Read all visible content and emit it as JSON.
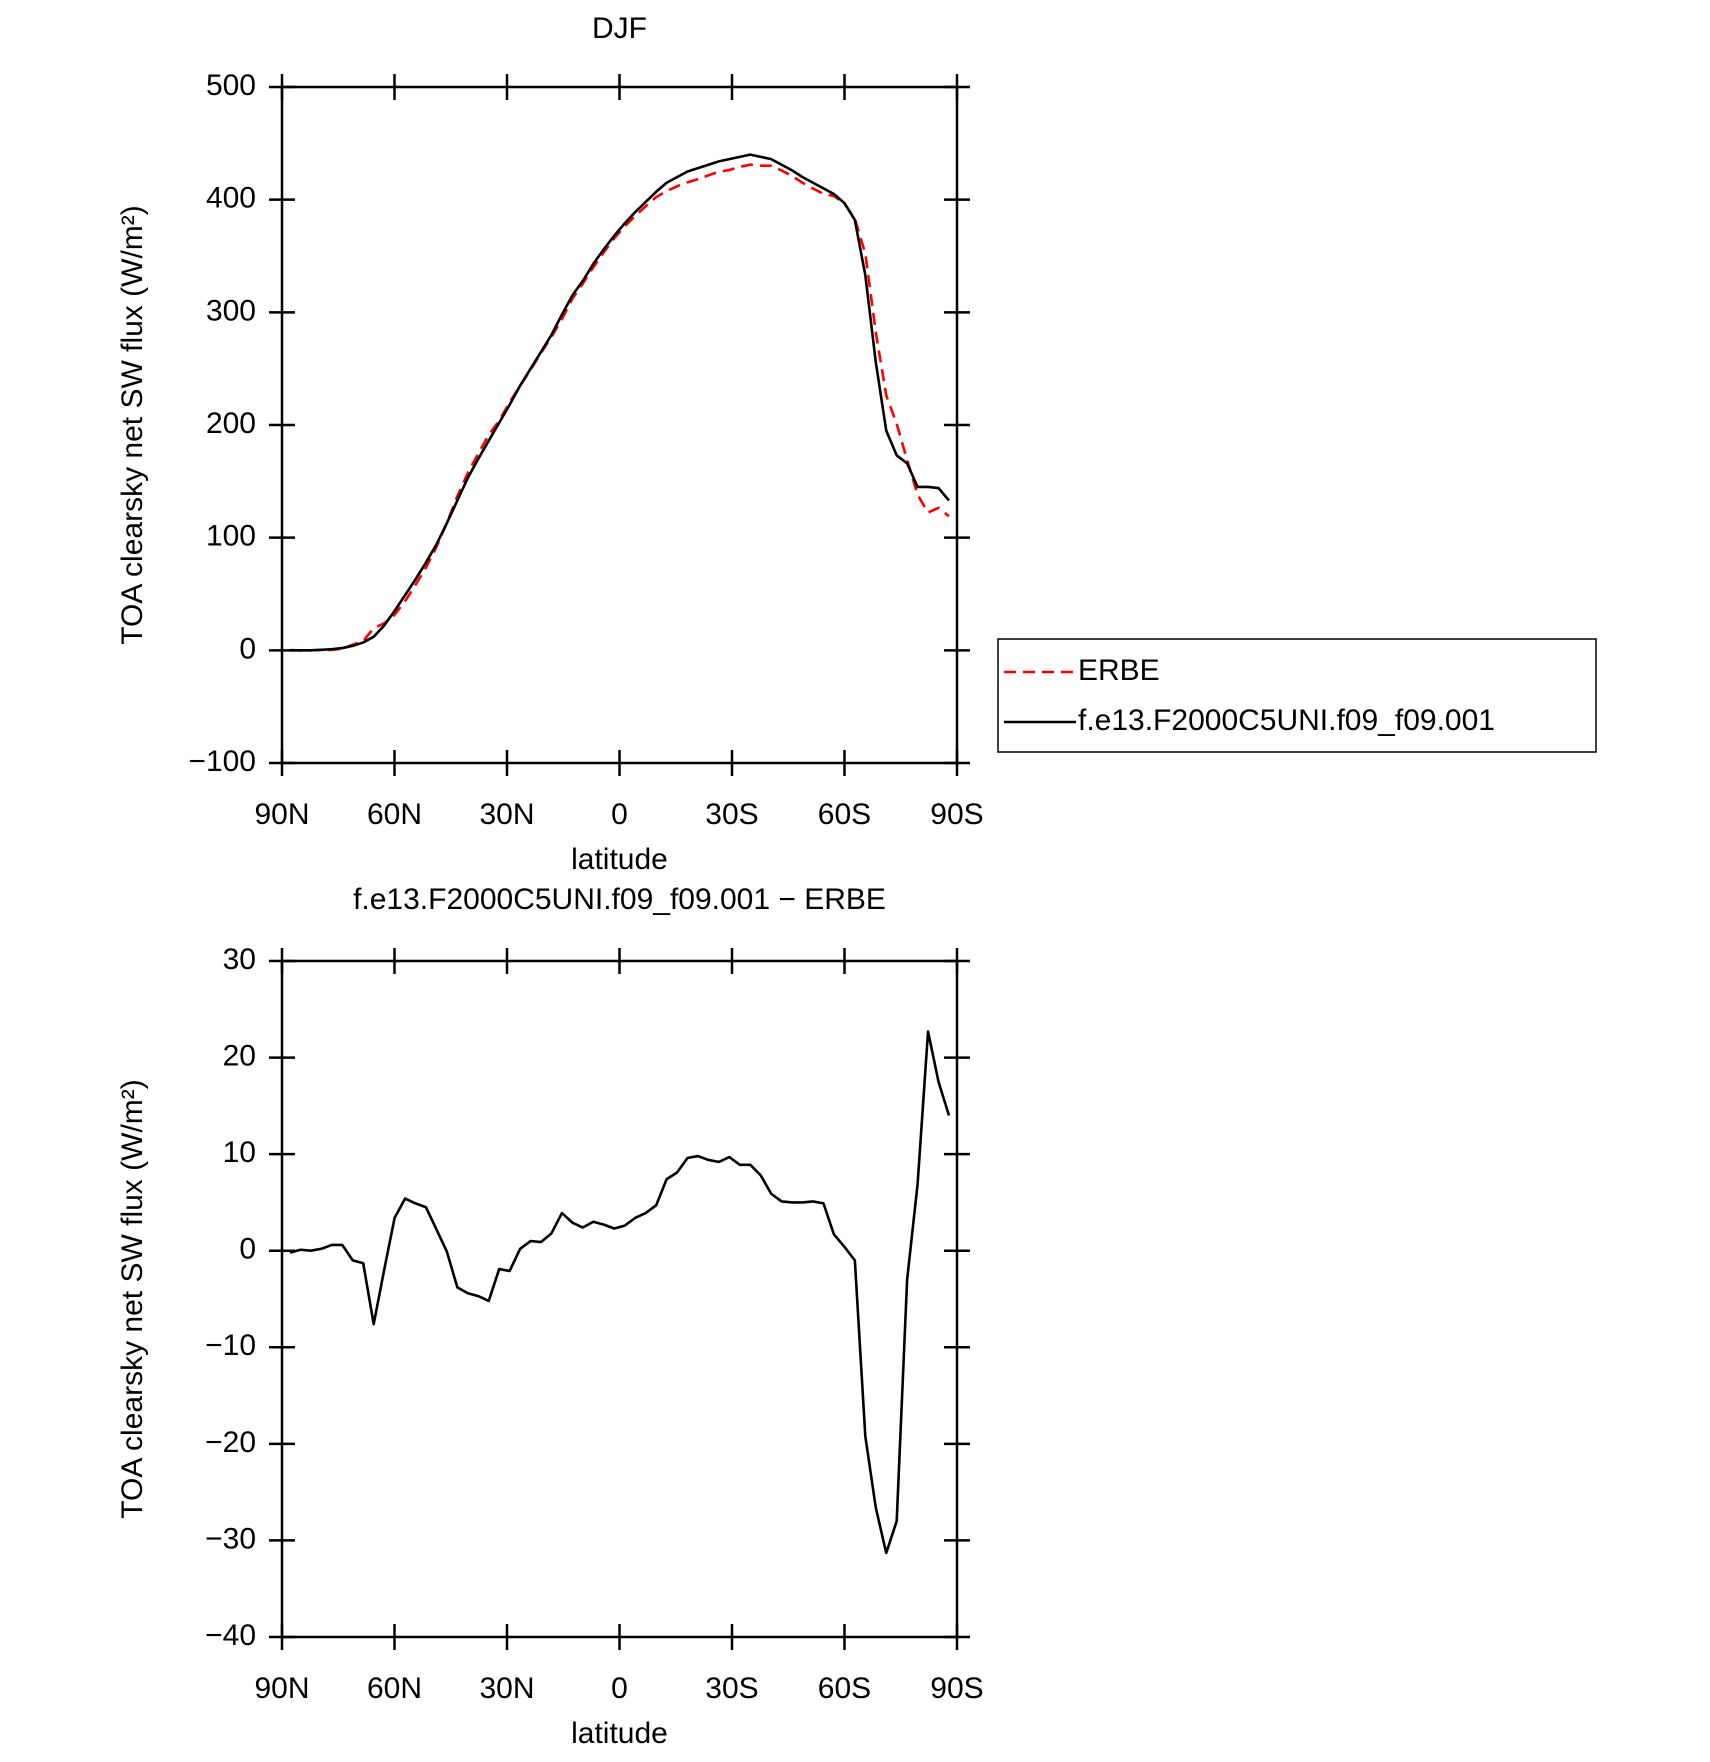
{
  "chart_data": [
    {
      "type": "line",
      "title": "DJF",
      "xlabel": "latitude",
      "ylabel": "TOA clearsky net SW flux (W/m²)",
      "x": [
        87.86,
        85.07,
        82.28,
        79.49,
        76.7,
        73.92,
        71.13,
        68.34,
        65.55,
        62.76,
        59.97,
        57.18,
        54.39,
        51.6,
        48.81,
        46.03,
        43.24,
        40.45,
        37.66,
        34.87,
        32.08,
        29.29,
        26.5,
        23.71,
        20.92,
        18.14,
        15.35,
        12.56,
        9.77,
        6.98,
        4.19,
        1.4,
        -1.4,
        -4.19,
        -6.98,
        -9.77,
        -12.56,
        -15.35,
        -18.14,
        -20.92,
        -23.71,
        -26.5,
        -29.29,
        -32.08,
        -34.87,
        -37.66,
        -40.45,
        -43.24,
        -46.03,
        -48.81,
        -51.6,
        -54.39,
        -57.18,
        -59.97,
        -62.76,
        -65.55,
        -68.34,
        -71.13,
        -73.92,
        -76.7,
        -79.49,
        -82.28,
        -85.07,
        -87.86
      ],
      "series": [
        {
          "name": "ERBE",
          "color": "#ff0000",
          "dash": true,
          "values": [
            0.2,
            -0.1,
            0,
            0.3,
            0.4,
            1.4,
            5,
            8.3,
            19.6,
            24,
            31.6,
            43.6,
            58.1,
            73.5,
            91.8,
            113.1,
            136.8,
            157.4,
            174.7,
            191.2,
            203.9,
            220.1,
            234.8,
            249,
            264.1,
            278.2,
            294.1,
            312.1,
            325.6,
            340,
            353.3,
            365.7,
            376.4,
            385.6,
            394.1,
            402.3,
            407.6,
            411.9,
            415.4,
            418.2,
            421.6,
            424.8,
            426.3,
            429.1,
            431.1,
            430.2,
            430.1,
            425.9,
            421,
            415,
            409.9,
            405.1,
            403.3,
            396.6,
            383,
            352.2,
            282.6,
            226.3,
            201,
            169,
            138.1,
            122.3,
            126.5,
            119
          ]
        },
        {
          "name": "f.e13.F2000C5UNI.f09_f09.001",
          "color": "#000000",
          "dash": false,
          "values": [
            0,
            0,
            0,
            0.5,
            1,
            2,
            4,
            7,
            12,
            22,
            35,
            49,
            63,
            78,
            94,
            113,
            133,
            153,
            170,
            186,
            202,
            218,
            235,
            250,
            265,
            280,
            298,
            315,
            328,
            343,
            356,
            368,
            379,
            389,
            398,
            407,
            415,
            420,
            425,
            428,
            431,
            434,
            436,
            438,
            440,
            438,
            436,
            431,
            426,
            420,
            415,
            410,
            405,
            397,
            382,
            333,
            256,
            195,
            173,
            166,
            145,
            145,
            144,
            133
          ]
        }
      ],
      "xlim": [
        90,
        -90
      ],
      "xticks": [
        {
          "value": 90,
          "label": "90N"
        },
        {
          "value": 60,
          "label": "60N"
        },
        {
          "value": 30,
          "label": "30N"
        },
        0,
        {
          "value": -30,
          "label": "30S"
        },
        {
          "value": -60,
          "label": "60S"
        },
        {
          "value": -90,
          "label": "90S"
        }
      ],
      "ylim": [
        -100,
        500
      ],
      "yticks": [
        {
          "value": -100,
          "label": "−100"
        },
        0,
        100,
        200,
        300,
        400,
        500
      ],
      "legend": "right"
    },
    {
      "type": "line",
      "title": "f.e13.F2000C5UNI.f09_f09.001 − ERBE",
      "xlabel": "latitude",
      "ylabel": "TOA clearsky net SW flux (W/m²)",
      "x": [
        87.86,
        85.07,
        82.28,
        79.49,
        76.7,
        73.92,
        71.13,
        68.34,
        65.55,
        62.76,
        59.97,
        57.18,
        54.39,
        51.6,
        48.81,
        46.03,
        43.24,
        40.45,
        37.66,
        34.87,
        32.08,
        29.29,
        26.5,
        23.71,
        20.92,
        18.14,
        15.35,
        12.56,
        9.77,
        6.98,
        4.19,
        1.4,
        -1.4,
        -4.19,
        -6.98,
        -9.77,
        -12.56,
        -15.35,
        -18.14,
        -20.92,
        -23.71,
        -26.5,
        -29.29,
        -32.08,
        -34.87,
        -37.66,
        -40.45,
        -43.24,
        -46.03,
        -48.81,
        -51.6,
        -54.39,
        -57.18,
        -59.97,
        -62.76,
        -65.55,
        -68.34,
        -71.13,
        -73.92,
        -76.7,
        -79.49,
        -82.28,
        -85.07,
        -87.86
      ],
      "values": [
        -0.2,
        0.1,
        0.0,
        0.2,
        0.6,
        0.6,
        -1.0,
        -1.3,
        -7.6,
        -2.0,
        3.4,
        5.4,
        4.9,
        4.5,
        2.2,
        -0.1,
        -3.8,
        -4.4,
        -4.7,
        -5.2,
        -1.9,
        -2.1,
        0.2,
        1.0,
        0.9,
        1.8,
        3.9,
        2.9,
        2.4,
        3.0,
        2.7,
        2.3,
        2.6,
        3.4,
        3.9,
        4.7,
        7.4,
        8.1,
        9.6,
        9.8,
        9.4,
        9.2,
        9.7,
        8.9,
        8.9,
        7.8,
        5.9,
        5.1,
        5.0,
        5.0,
        5.1,
        4.9,
        1.7,
        0.4,
        -1.0,
        -19.2,
        -26.6,
        -31.3,
        -28.0,
        -3.0,
        6.9,
        22.7,
        17.5,
        14.0
      ],
      "color": "#000000",
      "xlim": [
        90,
        -90
      ],
      "xticks": [
        {
          "value": 90,
          "label": "90N"
        },
        {
          "value": 60,
          "label": "60N"
        },
        {
          "value": 30,
          "label": "30N"
        },
        0,
        {
          "value": -30,
          "label": "30S"
        },
        {
          "value": -60,
          "label": "60S"
        },
        {
          "value": -90,
          "label": "90S"
        }
      ],
      "ylim": [
        -40,
        30
      ],
      "yticks": [
        {
          "value": -40,
          "label": "−40"
        },
        {
          "value": -30,
          "label": "−30"
        },
        {
          "value": -20,
          "label": "−20"
        },
        {
          "value": -10,
          "label": "−10"
        },
        0,
        10,
        20,
        30
      ]
    }
  ]
}
